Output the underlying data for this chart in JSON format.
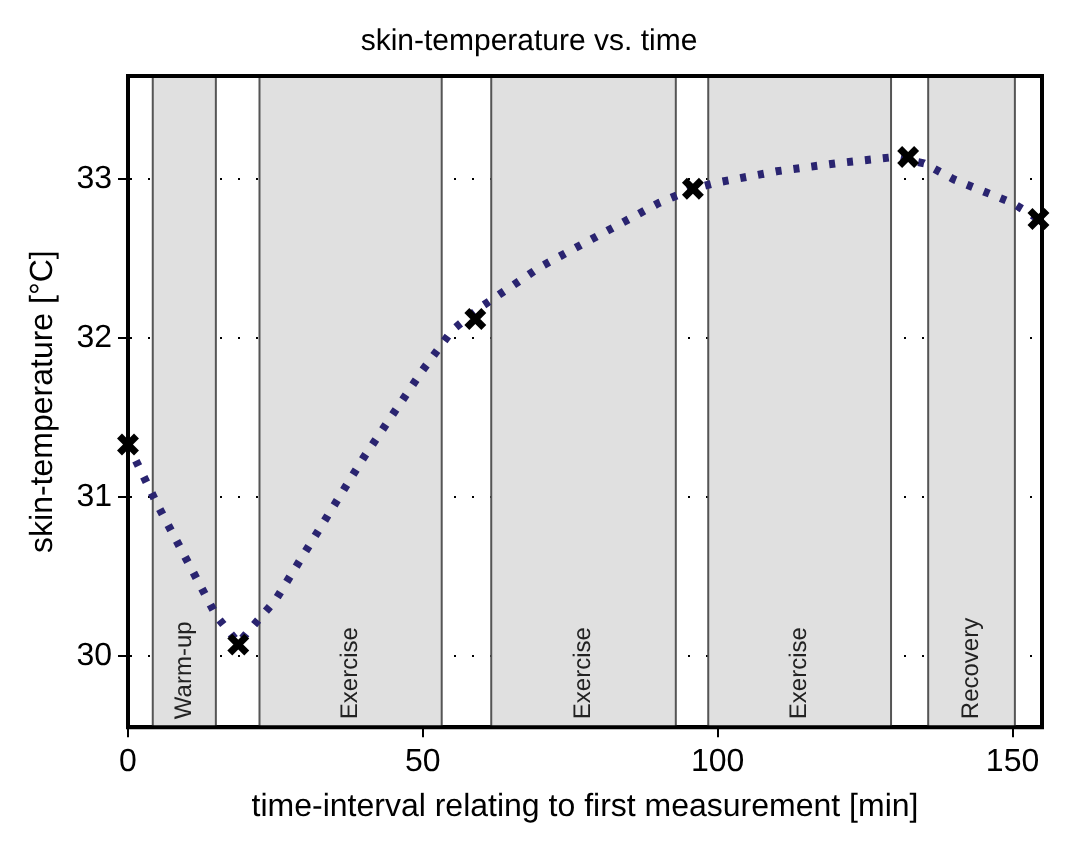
{
  "chart_data": {
    "type": "scatter",
    "title": "skin-temperature vs. time",
    "xlabel": "time-interval relating to first measurement [min]",
    "ylabel": "skin-temperature [°C]",
    "x": [
      0,
      18.7,
      58.9,
      95.8,
      132.3,
      154.4
    ],
    "series": [
      {
        "color": "#000000",
        "marker": "cross",
        "values": [
          31.33,
          30.07,
          32.12,
          32.94,
          33.14,
          32.75
        ]
      },
      {
        "type": "line",
        "color": "#2a2470",
        "marker": "none",
        "line_style": "dotted",
        "x": [
          0,
          5,
          10,
          15,
          18.7,
          25,
          30,
          40,
          50,
          55,
          60,
          70,
          80,
          90,
          95.8,
          100,
          110,
          120,
          130,
          135,
          140,
          150,
          154.4
        ],
        "values": [
          31.33,
          30.95,
          30.6,
          30.25,
          30.08,
          30.35,
          30.65,
          31.25,
          31.8,
          32.05,
          32.2,
          32.45,
          32.65,
          32.85,
          32.94,
          32.98,
          33.05,
          33.1,
          33.14,
          33.1,
          33.0,
          32.85,
          32.75
        ]
      }
    ],
    "xlim": [
      0,
      155
    ],
    "xticks": [
      0,
      50,
      100,
      150
    ],
    "ylim": [
      29.55,
      33.65
    ],
    "yticks": [
      30,
      31,
      32,
      33
    ],
    "grid": "y",
    "legend": false,
    "bands": [
      {
        "axis": "x",
        "from": 4.2,
        "to": 14.9,
        "label": "Warm-up",
        "color": "#e0e0e0"
      },
      {
        "axis": "x",
        "from": 22.3,
        "to": 53.2,
        "label": "Exercise",
        "color": "#e0e0e0"
      },
      {
        "axis": "x",
        "from": 61.6,
        "to": 92.9,
        "label": "Exercise",
        "color": "#e0e0e0"
      },
      {
        "axis": "x",
        "from": 98.4,
        "to": 129.4,
        "label": "Exercise",
        "color": "#e0e0e0"
      },
      {
        "axis": "x",
        "from": 135.7,
        "to": 150.4,
        "label": "Recovery",
        "color": "#e0e0e0"
      }
    ]
  }
}
